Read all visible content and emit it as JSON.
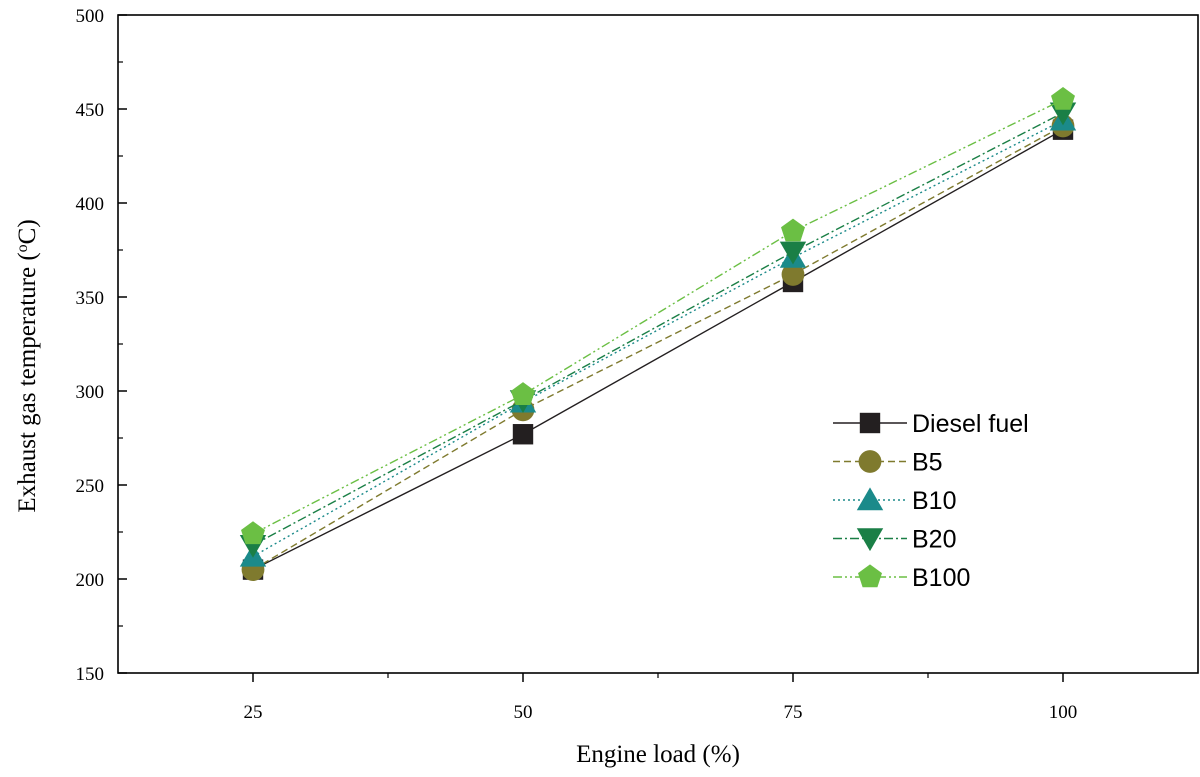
{
  "chart_data": {
    "type": "line",
    "title": "",
    "xlabel": "Engine load (%)",
    "ylabel_main": "Exhaust gas temperature (",
    "ylabel_sup": "o",
    "ylabel_end": "C)",
    "x": [
      25,
      50,
      75,
      100
    ],
    "xlim": [
      12.5,
      112.5
    ],
    "ylim": [
      150,
      500
    ],
    "xticks": [
      25,
      50,
      75,
      100
    ],
    "yticks": [
      150,
      200,
      250,
      300,
      350,
      400,
      450,
      500
    ],
    "legend_position": "center-right",
    "series": [
      {
        "name": "Diesel fuel",
        "values": [
          205,
          277,
          358,
          439
        ],
        "color": "#231f20",
        "marker": "square",
        "dash": ""
      },
      {
        "name": "B5",
        "values": [
          205,
          290,
          362,
          441
        ],
        "color": "#7f7a2e",
        "marker": "circle",
        "dash": "7,4"
      },
      {
        "name": "B10",
        "values": [
          212,
          294,
          371,
          444
        ],
        "color": "#1b8a8a",
        "marker": "triangle-up",
        "dash": "2,3"
      },
      {
        "name": "B20",
        "values": [
          218,
          295,
          374,
          448
        ],
        "color": "#1a7f46",
        "marker": "triangle-down",
        "dash": "9,3,2,3"
      },
      {
        "name": "B100",
        "values": [
          224,
          298,
          385,
          455
        ],
        "color": "#6bbf44",
        "marker": "pentagon",
        "dash": "9,3,2,3,2,3"
      }
    ]
  }
}
